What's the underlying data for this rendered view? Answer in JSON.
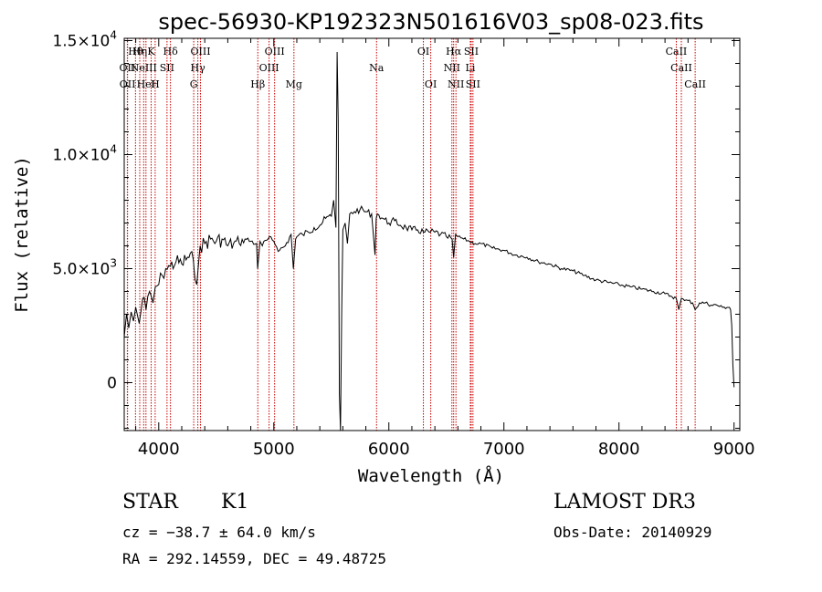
{
  "chart_data": {
    "type": "line",
    "title": "spec-56930-KP192323N501616V03_sp08-023.fits",
    "xlabel": "Wavelength (Å)",
    "ylabel": "Flux (relative)",
    "xlim": [
      3700,
      9050
    ],
    "ylim": [
      -2100,
      15100
    ],
    "x_ticks": [
      {
        "value": 4000,
        "label": "4000"
      },
      {
        "value": 5000,
        "label": "5000"
      },
      {
        "value": 6000,
        "label": "6000"
      },
      {
        "value": 7000,
        "label": "7000"
      },
      {
        "value": 8000,
        "label": "8000"
      },
      {
        "value": 9000,
        "label": "9000"
      }
    ],
    "y_ticks": [
      {
        "value": 0,
        "mantissa": "0",
        "exponent": ""
      },
      {
        "value": 5000,
        "mantissa": "5.0×10",
        "exponent": "3"
      },
      {
        "value": 10000,
        "mantissa": "1.0×10",
        "exponent": "4"
      },
      {
        "value": 15000,
        "mantissa": "1.5×10",
        "exponent": "4"
      }
    ],
    "series": [
      {
        "name": "flux",
        "color": "#000000",
        "x": [
          3700,
          3720,
          3740,
          3760,
          3780,
          3800,
          3830,
          3860,
          3890,
          3920,
          3950,
          3970,
          4000,
          4030,
          4060,
          4100,
          4150,
          4200,
          4250,
          4300,
          4330,
          4360,
          4400,
          4450,
          4500,
          4550,
          4600,
          4650,
          4700,
          4750,
          4800,
          4850,
          4860,
          4880,
          4900,
          4950,
          5000,
          5050,
          5100,
          5150,
          5170,
          5190,
          5200,
          5250,
          5300,
          5350,
          5400,
          5450,
          5500,
          5520,
          5540,
          5550,
          5560,
          5570,
          5580,
          5590,
          5600,
          5620,
          5640,
          5660,
          5700,
          5750,
          5800,
          5850,
          5880,
          5890,
          5900,
          5950,
          6000,
          6050,
          6100,
          6150,
          6200,
          6250,
          6300,
          6350,
          6400,
          6450,
          6500,
          6550,
          6563,
          6580,
          6600,
          6650,
          6700,
          6750,
          6800,
          6900,
          7000,
          7100,
          7200,
          7300,
          7400,
          7500,
          7600,
          7700,
          7800,
          7900,
          8000,
          8100,
          8200,
          8300,
          8400,
          8450,
          8498,
          8520,
          8542,
          8570,
          8600,
          8640,
          8662,
          8700,
          8750,
          8800,
          8850,
          8900,
          8940,
          8960,
          8970,
          8980,
          8990,
          9000
        ],
        "values": [
          2000,
          3000,
          2400,
          3100,
          2700,
          3300,
          2600,
          3700,
          3200,
          4000,
          3500,
          4200,
          4300,
          4700,
          5000,
          5100,
          5300,
          5200,
          5500,
          5400,
          4300,
          6000,
          6100,
          6300,
          6200,
          6300,
          6000,
          6100,
          6100,
          6300,
          6200,
          6100,
          5000,
          6200,
          6000,
          6300,
          6200,
          5800,
          6000,
          6500,
          5000,
          6300,
          6400,
          6500,
          6600,
          6800,
          6900,
          7200,
          7300,
          8000,
          6800,
          14500,
          11500,
          -500,
          -2100,
          3000,
          6700,
          7000,
          6100,
          7400,
          7500,
          7600,
          7500,
          7400,
          5600,
          7200,
          7400,
          7200,
          7000,
          7100,
          6900,
          6800,
          6700,
          6700,
          6600,
          6600,
          6600,
          6500,
          6400,
          6300,
          5500,
          6500,
          6400,
          6300,
          6200,
          6100,
          6100,
          5900,
          5800,
          5600,
          5500,
          5300,
          5200,
          5000,
          4900,
          4700,
          4500,
          4400,
          4300,
          4200,
          4100,
          4000,
          3900,
          3800,
          3700,
          3200,
          3700,
          3600,
          3600,
          3500,
          3200,
          3500,
          3500,
          3400,
          3400,
          3300,
          3300,
          3300,
          3200,
          2500,
          800,
          -200
        ]
      }
    ],
    "lines": [
      {
        "wavelength": 3798,
        "label": "Hθ",
        "row": 0
      },
      {
        "wavelength": 3835,
        "label": "Hη",
        "row": 0
      },
      {
        "wavelength": 3934,
        "label": "K",
        "row": 0
      },
      {
        "wavelength": 3969,
        "label": "H",
        "row": 2
      },
      {
        "wavelength": 4102,
        "label": "Hδ",
        "row": 0
      },
      {
        "wavelength": 3727,
        "label": "OII",
        "row": 1
      },
      {
        "wavelength": 3869,
        "label": "NeIII",
        "row": 1
      },
      {
        "wavelength": 4072,
        "label": "SII",
        "row": 1
      },
      {
        "wavelength": 3729,
        "label": "OII",
        "row": 2
      },
      {
        "wavelength": 3889,
        "label": "HeI",
        "row": 2
      },
      {
        "wavelength": 4340,
        "label": "Hγ",
        "row": 1
      },
      {
        "wavelength": 4304,
        "label": "G",
        "row": 2
      },
      {
        "wavelength": 4363,
        "label": "OIII",
        "row": 0
      },
      {
        "wavelength": 4861,
        "label": "Hβ",
        "row": 2
      },
      {
        "wavelength": 4959,
        "label": "OIII",
        "row": 1
      },
      {
        "wavelength": 5007,
        "label": "OIII",
        "row": 0
      },
      {
        "wavelength": 5175,
        "label": "Mg",
        "row": 2
      },
      {
        "wavelength": 5893,
        "label": "Na",
        "row": 1
      },
      {
        "wavelength": 6300,
        "label": "OI",
        "row": 0
      },
      {
        "wavelength": 6364,
        "label": "OI",
        "row": 2
      },
      {
        "wavelength": 6548,
        "label": "NII",
        "row": 1
      },
      {
        "wavelength": 6563,
        "label": "Hα",
        "row": 0
      },
      {
        "wavelength": 6583,
        "label": "NII",
        "row": 2
      },
      {
        "wavelength": 6708,
        "label": "Li",
        "row": 1
      },
      {
        "wavelength": 6716,
        "label": "SII",
        "row": 0
      },
      {
        "wavelength": 6731,
        "label": "SII",
        "row": 2
      },
      {
        "wavelength": 8498,
        "label": "CaII",
        "row": 0
      },
      {
        "wavelength": 8542,
        "label": "CaII",
        "row": 1
      },
      {
        "wavelength": 8662,
        "label": "CaII",
        "row": 2
      }
    ]
  },
  "info": {
    "class": "STAR",
    "subclass": "K1",
    "survey": "LAMOST DR3",
    "redshift": "cz = −38.7 ± 64.0 km/s",
    "obs_date": "Obs-Date: 20140929",
    "coords": "RA = 292.14559, DEC =  49.48725"
  },
  "colors": {
    "line_marker": "#cc0000",
    "spectrum": "#000000",
    "axes": "#000000",
    "background": "#ffffff"
  }
}
